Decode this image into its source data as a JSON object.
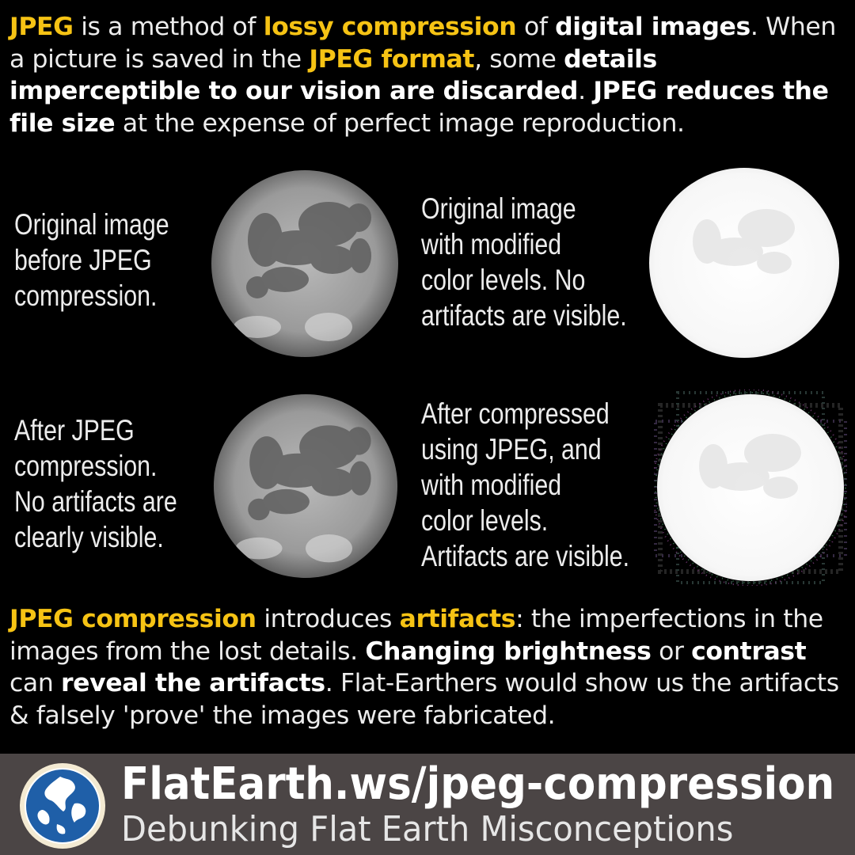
{
  "intro": {
    "p1": "JPEG",
    "p2": " is a method of ",
    "p3": "lossy compression",
    "p4": " of ",
    "p5": "digital images",
    "p6": ". When a picture is saved in the ",
    "p7": "JPEG format",
    "p8": ", some ",
    "p9": "details imperceptible to our vision are discarded",
    "p10": ". ",
    "p11": "JPEG reduces the file size",
    "p12": " at the expense of perfect image reproduction."
  },
  "panels": {
    "original": "Original image\nbefore JPEG\ncompression.",
    "modified": "Original image\nwith modified\ncolor levels. No\nartifacts are visible.",
    "jpeg": "After JPEG\ncompression.\nNo artifacts are\nclearly visible.",
    "jpeg_modified": "After compressed\nusing JPEG, and\nwith modified\ncolor levels.\nArtifacts are visible."
  },
  "outro": {
    "p1": "JPEG compression",
    "p2": " introduces ",
    "p3": "artifacts",
    "p4": ": the imperfections in the images from the lost details. ",
    "p5": "Changing brightness",
    "p6": " or ",
    "p7": "contrast",
    "p8": " can ",
    "p9": "reveal the artifacts",
    "p10": ". Flat-Earthers would show us the artifacts & falsely 'prove' the images were fabricated."
  },
  "footer": {
    "url": "FlatEarth.ws/jpeg-compression",
    "tagline": "Debunking Flat Earth Misconceptions"
  },
  "colors": {
    "background": "#000000",
    "highlight": "#f6c314",
    "footer_bg": "#4b4545"
  },
  "icons": {
    "moon_original": "moon-photo",
    "moon_jpeg": "moon-photo",
    "moon_bright": "bright-moon-photo",
    "moon_artifact": "bright-moon-artifacts-photo",
    "logo": "globe-logo-icon"
  }
}
